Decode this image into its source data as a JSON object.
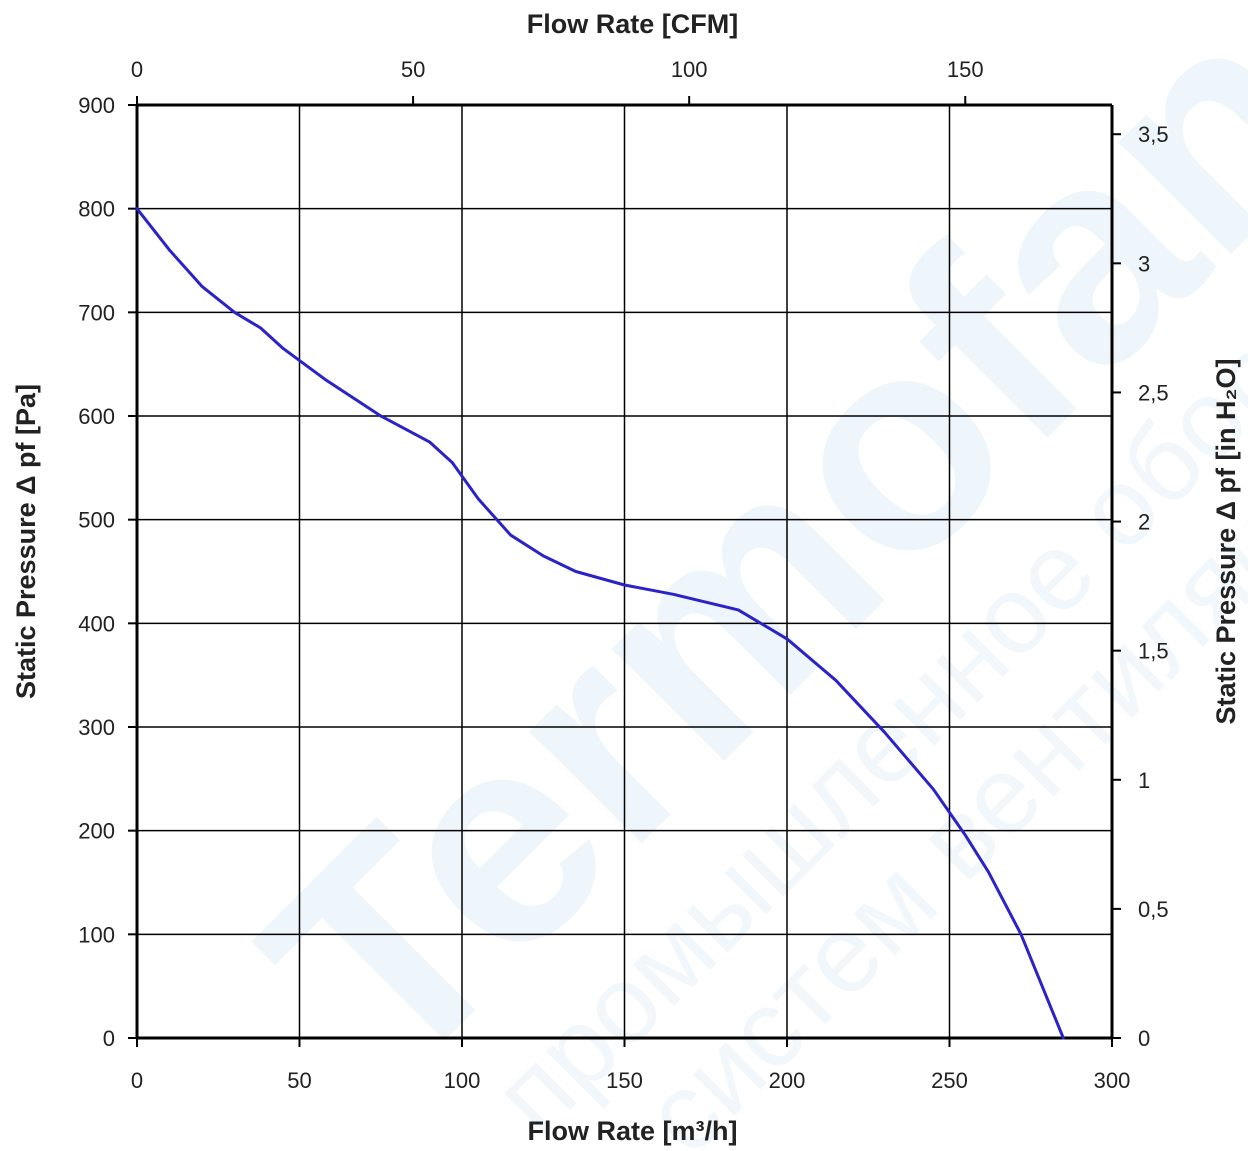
{
  "chart_data": {
    "type": "line",
    "watermark": {
      "brand": "Termofan",
      "line1": "промышленное оборудование",
      "line2": "систем вентиляции"
    },
    "x_bottom": {
      "label": "Flow Rate [m³/h]",
      "range": [
        0,
        300
      ],
      "ticks": [
        0,
        50,
        100,
        150,
        200,
        250,
        300
      ]
    },
    "x_top": {
      "label": "Flow Rate [CFM]",
      "ticks": [
        0,
        50,
        100,
        150
      ]
    },
    "y_left": {
      "label": "Static Pressure Δ pf [Pa]",
      "range": [
        0,
        900
      ],
      "ticks": [
        0,
        100,
        200,
        300,
        400,
        500,
        600,
        700,
        800,
        900
      ]
    },
    "y_right": {
      "label": "Static Pressure Δ pf [in H₂O]",
      "ticks": [
        "0",
        "0,5",
        "1",
        "1,5",
        "2",
        "2,5",
        "3",
        "3,5"
      ]
    },
    "grid": true,
    "colors": {
      "curve": "#2b22c8",
      "grid": "#000000"
    },
    "series": [
      {
        "x": [
          0,
          10,
          20,
          30,
          38,
          45,
          58,
          75,
          90,
          97,
          105,
          115,
          125,
          135,
          150,
          165,
          185,
          200,
          215,
          230,
          245,
          255,
          262,
          272,
          285
        ],
        "y": [
          800,
          760,
          725,
          700,
          685,
          665,
          635,
          600,
          575,
          555,
          520,
          485,
          465,
          450,
          437,
          428,
          413,
          385,
          345,
          295,
          240,
          195,
          160,
          100,
          0
        ]
      }
    ]
  }
}
